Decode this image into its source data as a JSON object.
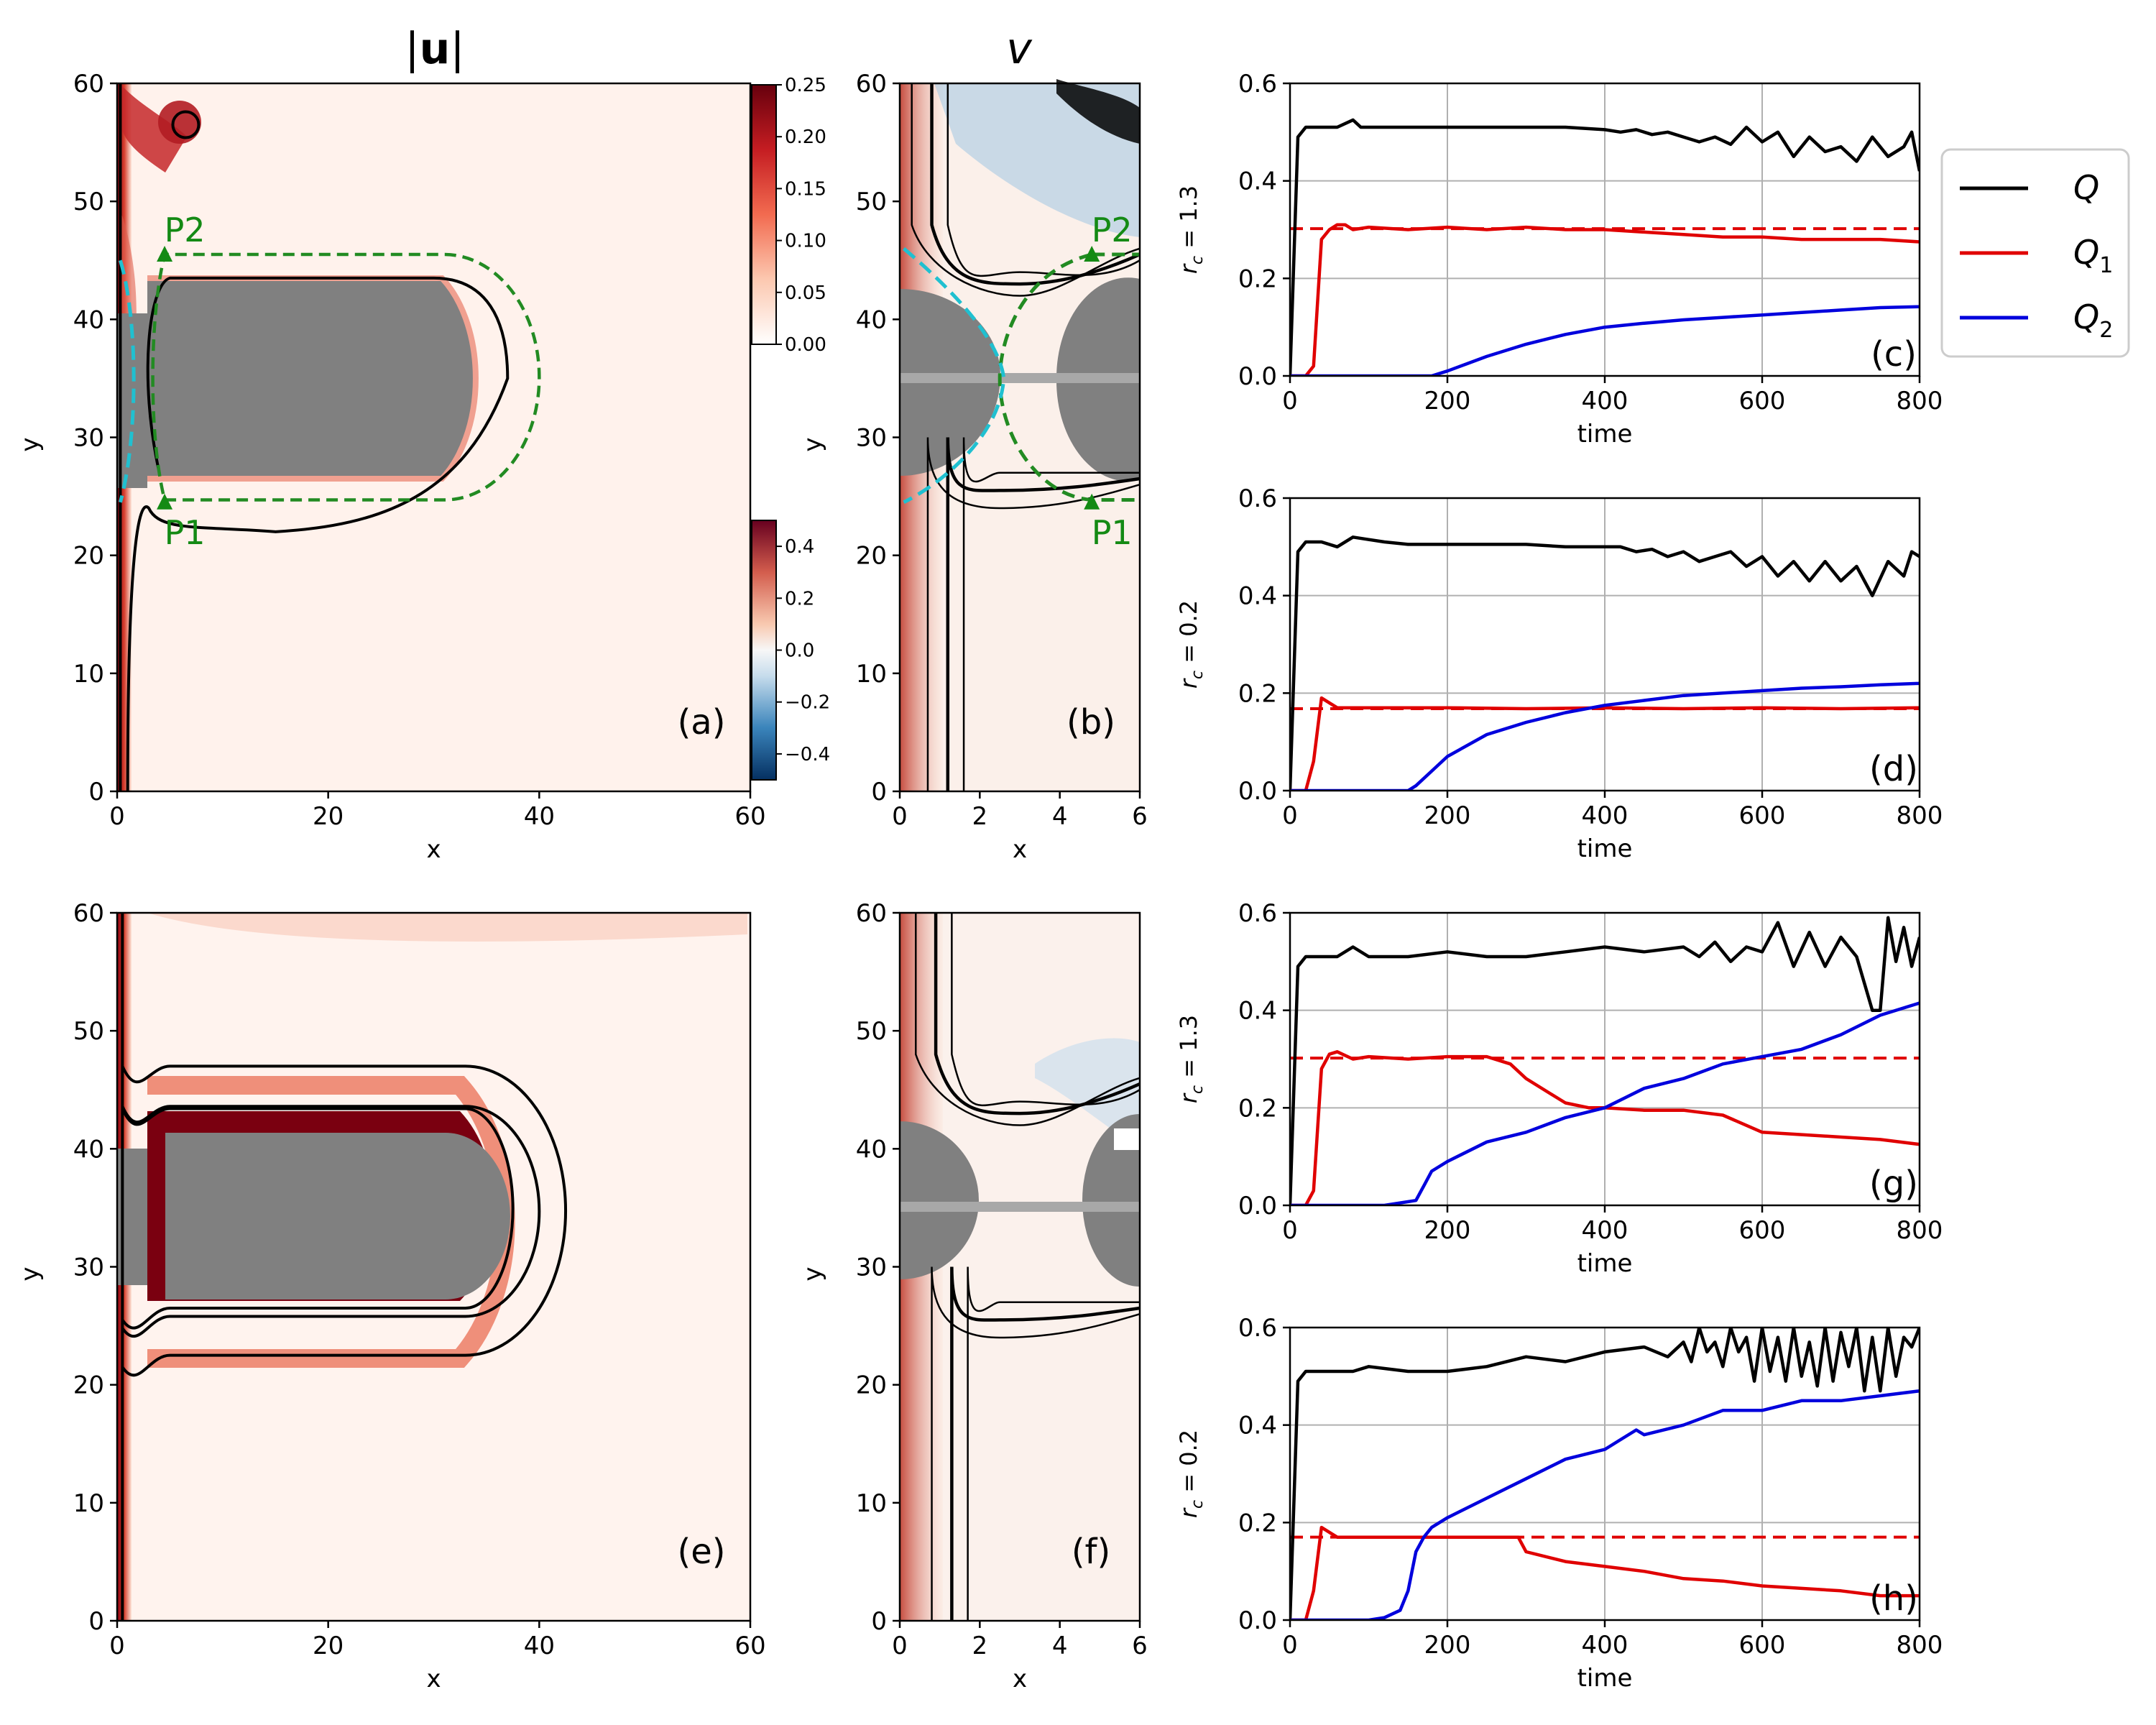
{
  "figure": {
    "title_u_bold": "u",
    "title_v": "v",
    "legend": [
      {
        "label": "Q",
        "sub": "",
        "color": "#000000"
      },
      {
        "label": "Q",
        "sub": "1",
        "color": "#e00000"
      },
      {
        "label": "Q",
        "sub": "2",
        "color": "#0000dd"
      }
    ]
  },
  "colorbars": {
    "umag": {
      "ticks": [
        "0.25",
        "0.20",
        "0.15",
        "0.10",
        "0.05",
        "0.00"
      ],
      "values": [
        0.25,
        0.2,
        0.15,
        0.1,
        0.05,
        0.0
      ]
    },
    "v": {
      "ticks": [
        "0.4",
        "0.2",
        "0.0",
        "−0.2",
        "−0.4"
      ],
      "values": [
        0.4,
        0.2,
        0.0,
        -0.2,
        -0.4
      ]
    }
  },
  "chart_data": [
    {
      "panel": "(a)",
      "type": "heatmap",
      "field": "|u|",
      "xlabel": "x",
      "ylabel": "y",
      "xlim": [
        0,
        60
      ],
      "ylim": [
        0,
        60
      ],
      "xticks": [
        "0",
        "20",
        "40",
        "60"
      ],
      "yticks": [
        "0",
        "10",
        "20",
        "30",
        "40",
        "50",
        "60"
      ],
      "points": [
        {
          "name": "P1",
          "x": 4.5,
          "y": 24.5
        },
        {
          "name": "P2",
          "x": 4.5,
          "y": 45.5
        }
      ]
    },
    {
      "panel": "(b)",
      "type": "heatmap",
      "field": "v",
      "xlabel": "x",
      "ylabel": "y",
      "xlim": [
        0,
        6
      ],
      "ylim": [
        0,
        60
      ],
      "xticks": [
        "0",
        "2",
        "4",
        "6"
      ],
      "yticks": [
        "0",
        "10",
        "20",
        "30",
        "40",
        "50",
        "60"
      ],
      "points": [
        {
          "name": "P1",
          "x": 4.8,
          "y": 24.5
        },
        {
          "name": "P2",
          "x": 4.8,
          "y": 45.5
        }
      ]
    },
    {
      "panel": "(e)",
      "type": "heatmap",
      "field": "|u|",
      "xlabel": "x",
      "ylabel": "y",
      "xlim": [
        0,
        60
      ],
      "ylim": [
        0,
        60
      ],
      "xticks": [
        "0",
        "20",
        "40",
        "60"
      ],
      "yticks": [
        "0",
        "10",
        "20",
        "30",
        "40",
        "50",
        "60"
      ]
    },
    {
      "panel": "(f)",
      "type": "heatmap",
      "field": "v",
      "xlabel": "x",
      "ylabel": "y",
      "xlim": [
        0,
        6
      ],
      "ylim": [
        0,
        60
      ],
      "xticks": [
        "0",
        "2",
        "4",
        "6"
      ],
      "yticks": [
        "0",
        "10",
        "20",
        "30",
        "40",
        "50",
        "60"
      ]
    },
    {
      "panel": "(c)",
      "type": "line",
      "xlabel": "time",
      "ylabel": "r_c = 1.3",
      "xlim": [
        0,
        800
      ],
      "ylim": [
        0,
        0.6
      ],
      "grid": true,
      "xticks": [
        "0",
        "200",
        "400",
        "600",
        "800"
      ],
      "yticks": [
        "0.0",
        "0.2",
        "0.4",
        "0.6"
      ],
      "ref_line": 0.302,
      "series": [
        {
          "name": "Q",
          "color": "#000000",
          "x": [
            0,
            10,
            20,
            40,
            60,
            80,
            90,
            100,
            120,
            150,
            200,
            250,
            300,
            350,
            400,
            420,
            440,
            460,
            480,
            500,
            520,
            540,
            560,
            580,
            600,
            620,
            640,
            660,
            680,
            700,
            720,
            740,
            760,
            780,
            790,
            800
          ],
          "y": [
            0,
            0.49,
            0.51,
            0.51,
            0.51,
            0.525,
            0.51,
            0.51,
            0.51,
            0.51,
            0.51,
            0.51,
            0.51,
            0.51,
            0.505,
            0.5,
            0.505,
            0.495,
            0.5,
            0.49,
            0.48,
            0.49,
            0.475,
            0.51,
            0.48,
            0.5,
            0.45,
            0.49,
            0.46,
            0.47,
            0.44,
            0.49,
            0.45,
            0.47,
            0.5,
            0.42
          ]
        },
        {
          "name": "Q1",
          "color": "#e00000",
          "x": [
            0,
            20,
            30,
            40,
            50,
            60,
            70,
            80,
            100,
            150,
            200,
            250,
            300,
            350,
            400,
            450,
            500,
            550,
            600,
            650,
            700,
            750,
            800
          ],
          "y": [
            0,
            0,
            0.02,
            0.28,
            0.3,
            0.31,
            0.31,
            0.3,
            0.305,
            0.3,
            0.305,
            0.3,
            0.305,
            0.3,
            0.3,
            0.295,
            0.29,
            0.285,
            0.285,
            0.28,
            0.28,
            0.28,
            0.275
          ]
        },
        {
          "name": "Q2",
          "color": "#0000dd",
          "x": [
            0,
            150,
            180,
            200,
            250,
            300,
            350,
            400,
            450,
            500,
            550,
            600,
            650,
            700,
            750,
            800
          ],
          "y": [
            0,
            0,
            0,
            0.01,
            0.04,
            0.065,
            0.085,
            0.1,
            0.108,
            0.115,
            0.12,
            0.125,
            0.13,
            0.135,
            0.14,
            0.142
          ]
        }
      ]
    },
    {
      "panel": "(d)",
      "type": "line",
      "xlabel": "time",
      "ylabel": "r_c = 0.2",
      "xlim": [
        0,
        800
      ],
      "ylim": [
        0,
        0.6
      ],
      "grid": true,
      "xticks": [
        "0",
        "200",
        "400",
        "600",
        "800"
      ],
      "yticks": [
        "0.0",
        "0.2",
        "0.4",
        "0.6"
      ],
      "ref_line": 0.168,
      "series": [
        {
          "name": "Q",
          "color": "#000000",
          "x": [
            0,
            10,
            20,
            40,
            60,
            80,
            100,
            120,
            150,
            200,
            250,
            300,
            350,
            400,
            420,
            440,
            460,
            480,
            500,
            520,
            540,
            560,
            580,
            600,
            620,
            640,
            660,
            680,
            700,
            720,
            740,
            760,
            780,
            790,
            800
          ],
          "y": [
            0,
            0.49,
            0.51,
            0.51,
            0.5,
            0.52,
            0.515,
            0.51,
            0.505,
            0.505,
            0.505,
            0.505,
            0.5,
            0.5,
            0.5,
            0.49,
            0.495,
            0.48,
            0.49,
            0.47,
            0.48,
            0.49,
            0.46,
            0.48,
            0.44,
            0.47,
            0.43,
            0.47,
            0.43,
            0.46,
            0.4,
            0.47,
            0.44,
            0.49,
            0.48
          ]
        },
        {
          "name": "Q1",
          "color": "#e00000",
          "x": [
            0,
            20,
            30,
            40,
            50,
            60,
            80,
            100,
            150,
            200,
            300,
            400,
            500,
            600,
            700,
            800
          ],
          "y": [
            0,
            0,
            0.06,
            0.19,
            0.18,
            0.17,
            0.17,
            0.17,
            0.17,
            0.17,
            0.168,
            0.17,
            0.168,
            0.17,
            0.168,
            0.17
          ]
        },
        {
          "name": "Q2",
          "color": "#0000dd",
          "x": [
            0,
            150,
            160,
            180,
            200,
            250,
            300,
            350,
            400,
            450,
            500,
            550,
            600,
            650,
            700,
            750,
            800
          ],
          "y": [
            0,
            0,
            0.01,
            0.04,
            0.07,
            0.115,
            0.14,
            0.16,
            0.175,
            0.185,
            0.195,
            0.2,
            0.205,
            0.21,
            0.213,
            0.217,
            0.22
          ]
        }
      ]
    },
    {
      "panel": "(g)",
      "type": "line",
      "xlabel": "time",
      "ylabel": "r_c = 1.3",
      "xlim": [
        0,
        800
      ],
      "ylim": [
        0,
        0.6
      ],
      "grid": true,
      "xticks": [
        "0",
        "200",
        "400",
        "600",
        "800"
      ],
      "yticks": [
        "0.0",
        "0.2",
        "0.4",
        "0.6"
      ],
      "ref_line": 0.302,
      "series": [
        {
          "name": "Q",
          "color": "#000000",
          "x": [
            0,
            10,
            20,
            40,
            60,
            80,
            100,
            150,
            200,
            250,
            300,
            350,
            400,
            450,
            500,
            520,
            540,
            560,
            580,
            600,
            620,
            640,
            660,
            680,
            700,
            720,
            740,
            750,
            760,
            770,
            780,
            790,
            800
          ],
          "y": [
            0,
            0.49,
            0.51,
            0.51,
            0.51,
            0.53,
            0.51,
            0.51,
            0.52,
            0.51,
            0.51,
            0.52,
            0.53,
            0.52,
            0.53,
            0.51,
            0.54,
            0.5,
            0.53,
            0.52,
            0.58,
            0.49,
            0.56,
            0.49,
            0.55,
            0.51,
            0.4,
            0.4,
            0.59,
            0.5,
            0.57,
            0.49,
            0.55
          ]
        },
        {
          "name": "Q1",
          "color": "#e00000",
          "x": [
            0,
            20,
            30,
            40,
            50,
            60,
            80,
            100,
            150,
            200,
            250,
            280,
            300,
            330,
            350,
            380,
            400,
            450,
            500,
            550,
            600,
            650,
            700,
            750,
            800
          ],
          "y": [
            0,
            0,
            0.03,
            0.28,
            0.31,
            0.315,
            0.3,
            0.305,
            0.3,
            0.305,
            0.305,
            0.29,
            0.26,
            0.23,
            0.21,
            0.2,
            0.2,
            0.195,
            0.195,
            0.185,
            0.15,
            0.145,
            0.14,
            0.135,
            0.125
          ]
        },
        {
          "name": "Q2",
          "color": "#0000dd",
          "x": [
            0,
            120,
            140,
            160,
            170,
            180,
            200,
            250,
            300,
            350,
            400,
            450,
            500,
            550,
            600,
            650,
            700,
            750,
            800
          ],
          "y": [
            0,
            0,
            0.005,
            0.01,
            0.04,
            0.07,
            0.09,
            0.13,
            0.15,
            0.18,
            0.2,
            0.24,
            0.26,
            0.29,
            0.305,
            0.32,
            0.35,
            0.39,
            0.415
          ]
        }
      ]
    },
    {
      "panel": "(h)",
      "type": "line",
      "xlabel": "time",
      "ylabel": "r_c = 0.2",
      "xlim": [
        0,
        800
      ],
      "ylim": [
        0,
        0.6
      ],
      "grid": true,
      "xticks": [
        "0",
        "200",
        "400",
        "600",
        "800"
      ],
      "yticks": [
        "0.0",
        "0.2",
        "0.4",
        "0.6"
      ],
      "ref_line": 0.17,
      "series": [
        {
          "name": "Q",
          "color": "#000000",
          "x": [
            0,
            10,
            20,
            40,
            60,
            80,
            100,
            150,
            200,
            250,
            300,
            350,
            400,
            450,
            480,
            500,
            510,
            520,
            530,
            540,
            550,
            560,
            570,
            580,
            590,
            600,
            610,
            620,
            630,
            640,
            650,
            660,
            670,
            680,
            690,
            700,
            710,
            720,
            730,
            740,
            750,
            760,
            770,
            780,
            790,
            800
          ],
          "y": [
            0,
            0.49,
            0.51,
            0.51,
            0.51,
            0.51,
            0.52,
            0.51,
            0.51,
            0.52,
            0.54,
            0.53,
            0.55,
            0.56,
            0.54,
            0.57,
            0.53,
            0.6,
            0.55,
            0.57,
            0.52,
            0.6,
            0.55,
            0.58,
            0.49,
            0.6,
            0.51,
            0.58,
            0.49,
            0.6,
            0.5,
            0.57,
            0.48,
            0.6,
            0.49,
            0.59,
            0.52,
            0.6,
            0.47,
            0.58,
            0.47,
            0.6,
            0.5,
            0.58,
            0.56,
            0.6
          ]
        },
        {
          "name": "Q1",
          "color": "#e00000",
          "x": [
            0,
            20,
            30,
            40,
            50,
            60,
            80,
            100,
            150,
            200,
            250,
            290,
            300,
            350,
            400,
            450,
            500,
            550,
            600,
            650,
            700,
            750,
            800
          ],
          "y": [
            0,
            0,
            0.06,
            0.19,
            0.18,
            0.17,
            0.17,
            0.17,
            0.17,
            0.17,
            0.17,
            0.17,
            0.14,
            0.12,
            0.11,
            0.1,
            0.085,
            0.08,
            0.07,
            0.065,
            0.06,
            0.05,
            0.05
          ]
        },
        {
          "name": "Q2",
          "color": "#0000dd",
          "x": [
            0,
            100,
            120,
            140,
            150,
            160,
            170,
            180,
            200,
            250,
            300,
            350,
            400,
            420,
            440,
            450,
            500,
            550,
            600,
            650,
            700,
            750,
            800
          ],
          "y": [
            0,
            0,
            0.005,
            0.02,
            0.06,
            0.14,
            0.17,
            0.19,
            0.21,
            0.25,
            0.29,
            0.33,
            0.35,
            0.37,
            0.39,
            0.38,
            0.4,
            0.43,
            0.43,
            0.45,
            0.45,
            0.46,
            0.47
          ]
        }
      ]
    }
  ]
}
